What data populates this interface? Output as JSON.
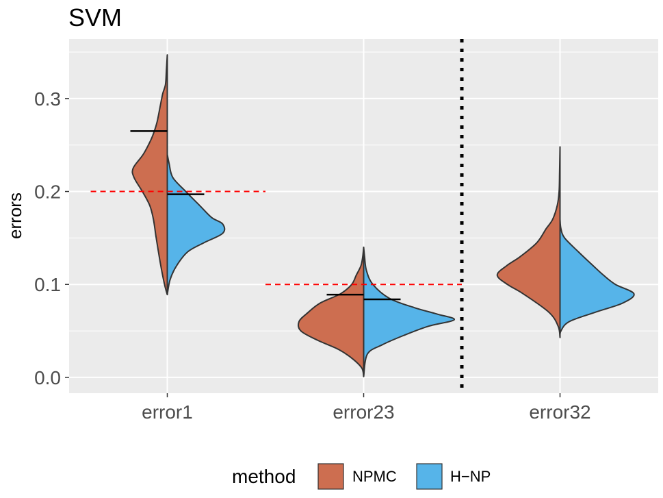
{
  "chart_data": {
    "type": "split-violin",
    "title": "SVM",
    "ylabel": "errors",
    "xlabel": "",
    "ylim": [
      -0.017,
      0.364
    ],
    "yticks": [
      0.0,
      0.1,
      0.2,
      0.3
    ],
    "ytick_labels": [
      "0.0",
      "0.1",
      "0.2",
      "0.3"
    ],
    "categories": [
      "error1",
      "error23",
      "error32"
    ],
    "grid": true,
    "legend": {
      "title": "method",
      "position": "bottom",
      "entries": [
        {
          "name": "NPMC",
          "color": "#CD6E50"
        },
        {
          "name": "H−NP",
          "color": "#56B4E9"
        }
      ]
    },
    "series": [
      {
        "name": "NPMC",
        "side": "left",
        "color": "#CD6E50",
        "violins": [
          {
            "category": "error1",
            "mean": 0.265,
            "profile": [
              [
                0.089,
                0.0
              ],
              [
                0.1,
                0.03
              ],
              [
                0.12,
                0.07
              ],
              [
                0.15,
                0.12
              ],
              [
                0.17,
                0.15
              ],
              [
                0.185,
                0.19
              ],
              [
                0.2,
                0.27
              ],
              [
                0.215,
                0.36
              ],
              [
                0.225,
                0.37
              ],
              [
                0.24,
                0.26
              ],
              [
                0.255,
                0.18
              ],
              [
                0.265,
                0.14
              ],
              [
                0.275,
                0.11
              ],
              [
                0.29,
                0.08
              ],
              [
                0.305,
                0.05
              ],
              [
                0.315,
                0.02
              ],
              [
                0.33,
                0.01
              ],
              [
                0.347,
                0.0
              ]
            ]
          },
          {
            "category": "error23",
            "mean": 0.089,
            "profile": [
              [
                0.001,
                0.0
              ],
              [
                0.01,
                0.02
              ],
              [
                0.02,
                0.12
              ],
              [
                0.03,
                0.27
              ],
              [
                0.04,
                0.5
              ],
              [
                0.05,
                0.68
              ],
              [
                0.06,
                0.7
              ],
              [
                0.07,
                0.6
              ],
              [
                0.08,
                0.47
              ],
              [
                0.09,
                0.25
              ],
              [
                0.1,
                0.13
              ],
              [
                0.11,
                0.08
              ],
              [
                0.12,
                0.03
              ],
              [
                0.13,
                0.01
              ],
              [
                0.14,
                0.0
              ]
            ]
          },
          {
            "category": "error32",
            "mean": null,
            "profile": [
              [
                0.043,
                0.0
              ],
              [
                0.055,
                0.02
              ],
              [
                0.07,
                0.12
              ],
              [
                0.09,
                0.4
              ],
              [
                0.1,
                0.57
              ],
              [
                0.11,
                0.68
              ],
              [
                0.12,
                0.58
              ],
              [
                0.13,
                0.43
              ],
              [
                0.145,
                0.25
              ],
              [
                0.16,
                0.15
              ],
              [
                0.17,
                0.08
              ],
              [
                0.185,
                0.03
              ],
              [
                0.2,
                0.01
              ],
              [
                0.22,
                0.005
              ],
              [
                0.248,
                0.0
              ]
            ]
          }
        ]
      },
      {
        "name": "H−NP",
        "side": "right",
        "color": "#56B4E9",
        "violins": [
          {
            "category": "error1",
            "mean": 0.197,
            "profile": [
              [
                0.089,
                0.0
              ],
              [
                0.105,
                0.03
              ],
              [
                0.12,
                0.1
              ],
              [
                0.135,
                0.22
              ],
              [
                0.145,
                0.4
              ],
              [
                0.155,
                0.6
              ],
              [
                0.165,
                0.6
              ],
              [
                0.172,
                0.48
              ],
              [
                0.185,
                0.35
              ],
              [
                0.2,
                0.2
              ],
              [
                0.215,
                0.06
              ],
              [
                0.23,
                0.02
              ],
              [
                0.24,
                0.0
              ]
            ]
          },
          {
            "category": "error23",
            "mean": 0.084,
            "profile": [
              [
                0.001,
                0.0
              ],
              [
                0.025,
                0.04
              ],
              [
                0.035,
                0.2
              ],
              [
                0.045,
                0.43
              ],
              [
                0.055,
                0.7
              ],
              [
                0.062,
                0.98
              ],
              [
                0.068,
                0.8
              ],
              [
                0.075,
                0.55
              ],
              [
                0.085,
                0.28
              ],
              [
                0.1,
                0.1
              ],
              [
                0.115,
                0.03
              ],
              [
                0.13,
                0.01
              ],
              [
                0.14,
                0.0
              ]
            ]
          },
          {
            "category": "error32",
            "mean": null,
            "profile": [
              [
                0.043,
                0.0
              ],
              [
                0.05,
                0.01
              ],
              [
                0.06,
                0.1
              ],
              [
                0.07,
                0.38
              ],
              [
                0.08,
                0.68
              ],
              [
                0.09,
                0.8
              ],
              [
                0.1,
                0.6
              ],
              [
                0.11,
                0.47
              ],
              [
                0.12,
                0.36
              ],
              [
                0.135,
                0.2
              ],
              [
                0.15,
                0.05
              ],
              [
                0.16,
                0.01
              ],
              [
                0.17,
                0.0
              ]
            ]
          }
        ]
      }
    ],
    "annotations": [
      {
        "type": "hline",
        "style": "dashed",
        "color": "#ff0000",
        "y": 0.2,
        "x_from": "error1",
        "x_to": "error23",
        "note": "from left of error1 to midpoint between error1 and error23"
      },
      {
        "type": "hline",
        "style": "dashed",
        "color": "#ff0000",
        "y": 0.1,
        "x_from": "error23",
        "x_to": "error32",
        "note": "from midpoint between error1 and error23 to midpoint between error23 and error32"
      },
      {
        "type": "vline",
        "style": "dotted",
        "color": "#000000",
        "x_between": [
          "error23",
          "error32"
        ]
      }
    ]
  }
}
